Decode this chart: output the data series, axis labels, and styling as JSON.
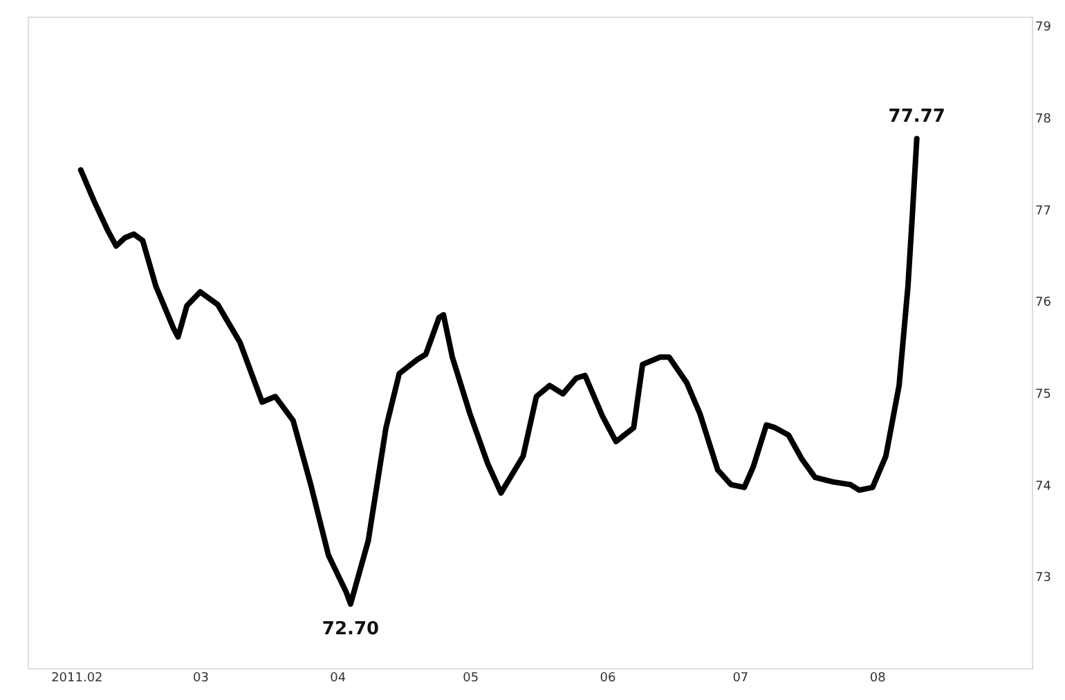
{
  "chart_data": {
    "type": "line",
    "x": [
      "2011-02-02",
      "2011-02-05",
      "2011-02-08",
      "2011-02-10",
      "2011-02-12",
      "2011-02-14",
      "2011-02-16",
      "2011-02-19",
      "2011-02-23",
      "2011-02-24",
      "2011-02-26",
      "2011-03-01",
      "2011-03-05",
      "2011-03-10",
      "2011-03-15",
      "2011-03-18",
      "2011-03-22",
      "2011-03-26",
      "2011-03-30",
      "2011-04-03",
      "2011-04-04",
      "2011-04-08",
      "2011-04-12",
      "2011-04-15",
      "2011-04-19",
      "2011-04-21",
      "2011-04-24",
      "2011-04-25",
      "2011-04-27",
      "2011-05-01",
      "2011-05-05",
      "2011-05-08",
      "2011-05-13",
      "2011-05-16",
      "2011-05-19",
      "2011-05-22",
      "2011-05-25",
      "2011-05-27",
      "2011-05-31",
      "2011-06-03",
      "2011-06-07",
      "2011-06-09",
      "2011-06-13",
      "2011-06-15",
      "2011-06-19",
      "2011-06-22",
      "2011-06-26",
      "2011-06-29",
      "2011-07-02",
      "2011-07-04",
      "2011-07-07",
      "2011-07-09",
      "2011-07-12",
      "2011-07-15",
      "2011-07-18",
      "2011-07-22",
      "2011-07-26",
      "2011-07-28",
      "2011-07-31",
      "2011-08-03",
      "2011-08-06",
      "2011-08-08",
      "2011-08-09",
      "2011-08-10"
    ],
    "series": [
      {
        "color": "#000000",
        "values": [
          77.43,
          77.09,
          76.78,
          76.6,
          76.69,
          76.73,
          76.66,
          76.16,
          75.7,
          75.61,
          75.95,
          76.1,
          75.96,
          75.55,
          74.9,
          74.96,
          74.7,
          74.0,
          73.23,
          72.83,
          72.7,
          73.39,
          74.62,
          75.21,
          75.36,
          75.42,
          75.82,
          75.85,
          75.39,
          74.77,
          74.23,
          73.91,
          74.31,
          74.96,
          75.08,
          74.99,
          75.16,
          75.19,
          74.74,
          74.47,
          74.62,
          75.31,
          75.39,
          75.39,
          75.11,
          74.77,
          74.16,
          74.0,
          73.97,
          74.19,
          74.65,
          74.62,
          74.54,
          74.28,
          74.08,
          74.03,
          74.0,
          73.94,
          73.97,
          74.31,
          75.08,
          76.16,
          76.94,
          77.77
        ]
      }
    ],
    "xlim": [
      "2011-01-21",
      "2011-09-05"
    ],
    "xticks": [
      {
        "value": "2011-02-01",
        "label": "2011.02"
      },
      {
        "value": "2011-03-01",
        "label": "03"
      },
      {
        "value": "2011-04-01",
        "label": "04"
      },
      {
        "value": "2011-05-01",
        "label": "05"
      },
      {
        "value": "2011-06-01",
        "label": "06"
      },
      {
        "value": "2011-07-01",
        "label": "07"
      },
      {
        "value": "2011-08-01",
        "label": "08"
      }
    ],
    "ylim": [
      72,
      79.1
    ],
    "yticks": [
      73,
      74,
      75,
      76,
      77,
      78,
      79
    ],
    "annotations": [
      {
        "text": "72.70",
        "x": "2011-04-04",
        "y": 72.7
      },
      {
        "text": "77.77",
        "x": "2011-08-10",
        "y": 77.77
      }
    ],
    "grid": false,
    "marker": "none",
    "line_style": "solid"
  }
}
